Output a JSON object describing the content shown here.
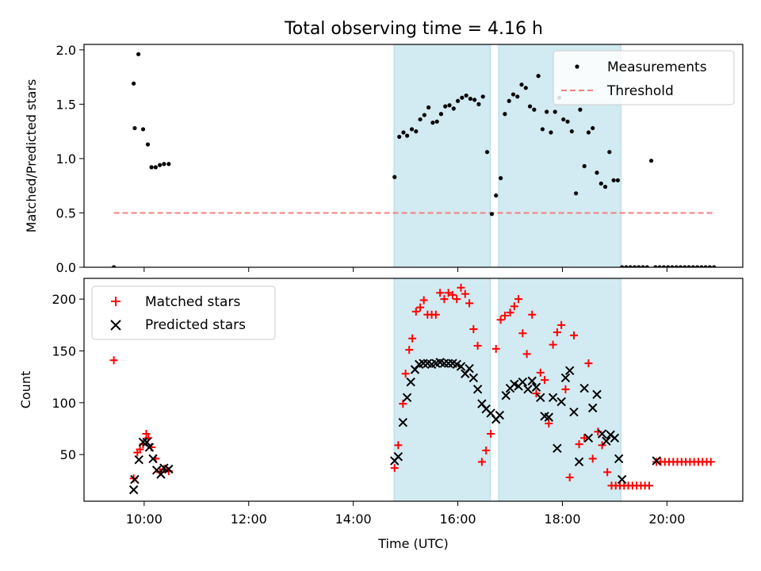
{
  "title": "Total observing time = 4.16 h",
  "colors": {
    "matched": "#ff0000",
    "predicted": "#000000",
    "threshold": "#f08080",
    "shade": "#add8e6"
  },
  "chart_data": [
    {
      "type": "scatter",
      "panel": "top",
      "ylabel": "Matched/Predicted stars",
      "xlim": [
        8.85,
        21.45
      ],
      "ylim": [
        0.0,
        2.05
      ],
      "yticks": [
        0.0,
        0.5,
        1.0,
        1.5,
        2.0
      ],
      "ytick_labels": [
        "0.0",
        "0.5",
        "1.0",
        "1.5",
        "2.0"
      ],
      "xticks": [
        10,
        12,
        14,
        16,
        18,
        20
      ],
      "shaded_intervals": [
        [
          14.78,
          16.62
        ],
        [
          16.78,
          19.12
        ]
      ],
      "legend": {
        "placement": "top-right",
        "entries": [
          "Measurements",
          "Threshold"
        ]
      },
      "series": [
        {
          "name": "Measurements",
          "x": [
            9.42,
            9.8,
            9.82,
            9.89,
            9.98,
            10.07,
            10.14,
            10.22,
            10.3,
            10.38,
            10.47,
            14.79,
            14.88,
            14.96,
            15.03,
            15.12,
            15.2,
            15.28,
            15.36,
            15.44,
            15.52,
            15.6,
            15.68,
            15.76,
            15.84,
            15.92,
            16.0,
            16.08,
            16.16,
            16.24,
            16.32,
            16.4,
            16.48,
            16.56,
            16.65,
            16.73,
            16.82,
            16.9,
            16.98,
            17.06,
            17.14,
            17.22,
            17.3,
            17.38,
            17.46,
            17.54,
            17.62,
            17.7,
            17.78,
            17.86,
            17.94,
            18.02,
            18.1,
            18.18,
            18.26,
            18.34,
            18.42,
            18.5,
            18.58,
            18.66,
            18.74,
            18.82,
            18.9,
            18.98,
            19.06,
            19.14,
            19.22,
            19.3,
            19.38,
            19.46,
            19.54,
            19.62,
            19.7,
            19.78,
            19.86,
            19.94,
            20.02,
            20.1,
            20.18,
            20.26,
            20.34,
            20.42,
            20.5,
            20.58,
            20.66,
            20.74,
            20.82,
            20.9
          ],
          "y": [
            0.0,
            1.69,
            1.28,
            1.96,
            1.27,
            1.13,
            0.92,
            0.92,
            0.94,
            0.95,
            0.95,
            0.83,
            1.2,
            1.24,
            1.21,
            1.27,
            1.25,
            1.36,
            1.4,
            1.47,
            1.33,
            1.34,
            1.41,
            1.48,
            1.49,
            1.46,
            1.53,
            1.56,
            1.58,
            1.55,
            1.54,
            1.5,
            1.57,
            1.06,
            0.49,
            0.66,
            0.82,
            1.41,
            1.53,
            1.59,
            1.57,
            1.68,
            1.65,
            1.48,
            1.45,
            1.76,
            1.27,
            1.43,
            1.24,
            1.43,
            1.56,
            1.36,
            1.34,
            1.25,
            0.68,
            1.45,
            0.93,
            1.24,
            1.28,
            0.87,
            0.77,
            0.74,
            1.06,
            0.8,
            0.8,
            0.0,
            0.0,
            0.0,
            0.0,
            0.0,
            0.0,
            0.0,
            0.98,
            0.0,
            0.0,
            0.0,
            0.0,
            0.0,
            0.0,
            0.0,
            0.0,
            0.0,
            0.0,
            0.0,
            0.0,
            0.0,
            0.0,
            0.0
          ]
        },
        {
          "name": "Threshold",
          "x": [
            9.42,
            20.9
          ],
          "y": [
            0.5,
            0.5
          ]
        }
      ]
    },
    {
      "type": "scatter",
      "panel": "bottom",
      "xlabel": "Time (UTC)",
      "ylabel": "Count",
      "xlim": [
        8.85,
        21.45
      ],
      "ylim": [
        5,
        220
      ],
      "yticks": [
        50,
        100,
        150,
        200
      ],
      "xticks": [
        10,
        12,
        14,
        16,
        18,
        20
      ],
      "xtick_labels": [
        "10:00",
        "12:00",
        "14:00",
        "16:00",
        "18:00",
        "20:00"
      ],
      "shaded_intervals": [
        [
          14.78,
          16.62
        ],
        [
          16.78,
          19.12
        ]
      ],
      "legend": {
        "placement": "top-left",
        "entries": [
          "Matched stars",
          "Predicted stars"
        ]
      },
      "series": [
        {
          "name": "Matched stars",
          "x": [
            9.42,
            9.8,
            9.87,
            9.92,
            9.98,
            10.04,
            10.08,
            10.14,
            10.22,
            10.3,
            10.38,
            10.47,
            14.79,
            14.86,
            14.95,
            15.0,
            15.07,
            15.13,
            15.2,
            15.28,
            15.35,
            15.42,
            15.5,
            15.58,
            15.66,
            15.74,
            15.82,
            15.9,
            15.98,
            16.06,
            16.14,
            16.22,
            16.3,
            16.38,
            16.46,
            16.54,
            16.63,
            16.73,
            16.82,
            16.9,
            17.0,
            17.08,
            17.16,
            17.24,
            17.32,
            17.42,
            17.5,
            17.58,
            17.66,
            17.74,
            17.82,
            17.9,
            17.98,
            18.06,
            18.14,
            18.22,
            18.32,
            18.42,
            18.5,
            18.58,
            18.68,
            18.76,
            18.86,
            18.94,
            19.02,
            19.1,
            19.18,
            19.26,
            19.34,
            19.42,
            19.5,
            19.58,
            19.66,
            19.8,
            19.88,
            19.96,
            20.04,
            20.12,
            20.2,
            20.28,
            20.36,
            20.44,
            20.52,
            20.6,
            20.68,
            20.76,
            20.84
          ],
          "y": [
            141,
            27,
            52,
            55,
            60,
            70,
            66,
            57,
            46,
            33,
            36,
            34,
            37,
            59,
            99,
            128,
            151,
            162,
            188,
            192,
            199,
            185,
            185,
            185,
            206,
            200,
            206,
            204,
            200,
            211,
            205,
            196,
            171,
            155,
            43,
            54,
            70,
            152,
            180,
            184,
            187,
            193,
            200,
            167,
            147,
            185,
            109,
            129,
            122,
            80,
            156,
            168,
            175,
            113,
            28,
            165,
            60,
            66,
            138,
            46,
            72,
            59,
            33,
            20,
            20,
            20,
            20,
            20,
            20,
            20,
            20,
            20,
            20,
            43,
            43,
            43,
            43,
            43,
            43,
            43,
            43,
            43,
            43,
            43,
            43,
            43,
            43
          ]
        },
        {
          "name": "Predicted stars",
          "x": [
            9.8,
            9.82,
            9.9,
            9.98,
            10.05,
            10.1,
            10.17,
            10.24,
            10.32,
            10.38,
            10.47,
            14.79,
            14.86,
            14.95,
            15.03,
            15.1,
            15.18,
            15.26,
            15.34,
            15.42,
            15.5,
            15.58,
            15.66,
            15.74,
            15.82,
            15.9,
            15.98,
            16.06,
            16.14,
            16.22,
            16.3,
            16.38,
            16.46,
            16.54,
            16.63,
            16.73,
            16.8,
            16.92,
            17.0,
            17.08,
            17.16,
            17.24,
            17.34,
            17.42,
            17.5,
            17.58,
            17.66,
            17.74,
            17.82,
            17.9,
            17.98,
            18.06,
            18.14,
            18.22,
            18.32,
            18.42,
            18.5,
            18.58,
            18.66,
            18.76,
            18.84,
            18.92,
            19.0,
            19.08,
            19.14,
            19.8
          ],
          "y": [
            16,
            26,
            45,
            62,
            62,
            57,
            46,
            35,
            31,
            37,
            36,
            44,
            48,
            81,
            105,
            120,
            132,
            137,
            138,
            138,
            137,
            138,
            139,
            138,
            138,
            138,
            137,
            135,
            128,
            133,
            124,
            113,
            99,
            94,
            90,
            84,
            88,
            107,
            114,
            118,
            116,
            120,
            113,
            121,
            115,
            105,
            87,
            86,
            105,
            56,
            101,
            124,
            131,
            91,
            43,
            114,
            66,
            95,
            108,
            70,
            63,
            69,
            66,
            46,
            26,
            44
          ]
        }
      ]
    }
  ]
}
